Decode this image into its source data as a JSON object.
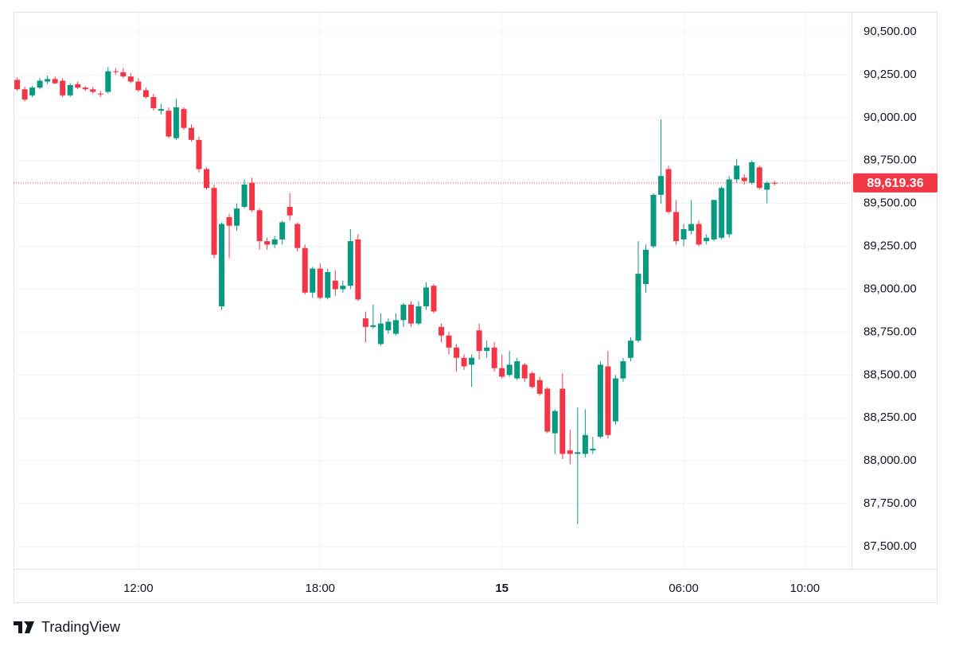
{
  "chart_data": {
    "type": "candlestick",
    "brand": "TradingView",
    "up_color": "#089981",
    "down_color": "#f23645",
    "grid": true,
    "xlim": [
      7.88,
      35.54
    ],
    "xticks": [
      {
        "value": 12,
        "label": "12:00"
      },
      {
        "value": 18,
        "label": "18:00"
      },
      {
        "value": 24,
        "label": "15"
      },
      {
        "value": 30,
        "label": "06:00"
      },
      {
        "value": 34,
        "label": "10:00"
      }
    ],
    "ylim": [
      87370,
      90616
    ],
    "yticks": [
      {
        "value": 87500,
        "label": "87,500.00"
      },
      {
        "value": 87750,
        "label": "87,750.00"
      },
      {
        "value": 88000,
        "label": "88,000.00"
      },
      {
        "value": 88250,
        "label": "88,250.00"
      },
      {
        "value": 88500,
        "label": "88,500.00"
      },
      {
        "value": 88750,
        "label": "88,750.00"
      },
      {
        "value": 89000,
        "label": "89,000.00"
      },
      {
        "value": 89250,
        "label": "89,250.00"
      },
      {
        "value": 89500,
        "label": "89,500.00"
      },
      {
        "value": 89750,
        "label": "89,750.00"
      },
      {
        "value": 90000,
        "label": "90,000.00"
      },
      {
        "value": 90250,
        "label": "90,250.00"
      },
      {
        "value": 90500,
        "label": "90,500.00"
      }
    ],
    "last_price": {
      "value": 89619.36,
      "label": "89,619.36"
    },
    "x": [
      8,
      8.25,
      8.5,
      8.75,
      9,
      9.25,
      9.5,
      9.75,
      10,
      10.25,
      10.5,
      10.75,
      11,
      11.25,
      11.5,
      11.75,
      12,
      12.25,
      12.5,
      12.75,
      13,
      13.25,
      13.5,
      13.75,
      14,
      14.25,
      14.5,
      14.75,
      15,
      15.25,
      15.5,
      15.75,
      16,
      16.25,
      16.5,
      16.75,
      17,
      17.25,
      17.5,
      17.75,
      18,
      18.25,
      18.5,
      18.75,
      19,
      19.25,
      19.5,
      19.75,
      20,
      20.25,
      20.5,
      20.75,
      21,
      21.25,
      21.5,
      21.75,
      22,
      22.25,
      22.5,
      22.75,
      23,
      23.25,
      23.5,
      23.75,
      24,
      24.25,
      24.5,
      24.75,
      25,
      25.25,
      25.5,
      25.75,
      26,
      26.25,
      26.5,
      26.75,
      27,
      27.25,
      27.5,
      27.75,
      28,
      28.25,
      28.5,
      28.75,
      29,
      29.25,
      29.5,
      29.75,
      30,
      30.25,
      30.5,
      30.75,
      31,
      31.25,
      31.5,
      31.75,
      32,
      32.25,
      32.5,
      32.75,
      33
    ],
    "open": [
      90220,
      90165,
      90130,
      90175,
      90210,
      90225,
      90215,
      90130,
      90195,
      90175,
      90165,
      90140,
      90150,
      90270,
      90265,
      90240,
      90210,
      90160,
      90120,
      90040,
      90040,
      89880,
      90050,
      89940,
      89870,
      89700,
      89590,
      88900,
      89420,
      89370,
      89480,
      89620,
      89460,
      89280,
      89260,
      89290,
      89480,
      89380,
      89240,
      88980,
      89120,
      88950,
      89050,
      89000,
      89020,
      89290,
      88830,
      88780,
      88680,
      88760,
      88740,
      88820,
      88910,
      88800,
      88900,
      89020,
      88780,
      88730,
      88660,
      88600,
      88560,
      88760,
      88640,
      88660,
      88540,
      88500,
      88480,
      88560,
      88510,
      88470,
      88420,
      88160,
      88420,
      88060,
      88040,
      88040,
      88060,
      88140,
      88550,
      88230,
      88480,
      88600,
      88700,
      89030,
      89250,
      89550,
      89700,
      89450,
      89290,
      89340,
      89380,
      89280,
      89290,
      89300,
      89320,
      89640,
      89650,
      89620,
      89710,
      89580,
      89620
    ],
    "high": [
      90235,
      90180,
      90185,
      90230,
      90245,
      90240,
      90230,
      90200,
      90210,
      90185,
      90180,
      90155,
      90295,
      90290,
      90290,
      90260,
      90230,
      90175,
      90140,
      90080,
      90060,
      90110,
      90060,
      89960,
      89890,
      89710,
      89610,
      89390,
      89440,
      89500,
      89640,
      89650,
      89470,
      89300,
      89310,
      89400,
      89560,
      89390,
      89260,
      89130,
      89150,
      89120,
      89110,
      89050,
      89350,
      89320,
      88870,
      88910,
      88860,
      88830,
      88860,
      88920,
      88930,
      88930,
      89040,
      89030,
      88800,
      88750,
      88680,
      88620,
      88620,
      88800,
      88700,
      88690,
      88620,
      88640,
      88600,
      88570,
      88520,
      88490,
      88430,
      88300,
      88510,
      88180,
      88310,
      88300,
      88140,
      88580,
      88640,
      88500,
      88600,
      88720,
      89280,
      89260,
      89560,
      89990,
      89720,
      89520,
      89380,
      89520,
      89400,
      89320,
      89520,
      89600,
      89660,
      89760,
      89670,
      89750,
      89720,
      89630,
      89630
    ],
    "low": [
      90155,
      90095,
      90120,
      90165,
      90195,
      90195,
      90120,
      90120,
      90165,
      90155,
      90140,
      90120,
      90140,
      90250,
      90230,
      90200,
      90150,
      90110,
      90040,
      90020,
      89880,
      89870,
      89930,
      89860,
      89680,
      89580,
      89180,
      88880,
      89180,
      89340,
      89470,
      89450,
      89230,
      89230,
      89240,
      89260,
      89400,
      89220,
      88970,
      88950,
      88940,
      88940,
      88960,
      88980,
      89000,
      88930,
      88690,
      88770,
      88670,
      88740,
      88730,
      88780,
      88780,
      88790,
      88880,
      88860,
      88690,
      88620,
      88520,
      88530,
      88430,
      88590,
      88600,
      88520,
      88480,
      88490,
      88470,
      88460,
      88420,
      88380,
      88160,
      88040,
      88010,
      87980,
      87630,
      88020,
      88040,
      88130,
      88130,
      88210,
      88460,
      88580,
      88690,
      88980,
      89240,
      89500,
      89440,
      89260,
      89250,
      89320,
      89250,
      89260,
      89280,
      89290,
      89300,
      89620,
      89610,
      89610,
      89580,
      89500,
      89605
    ],
    "close": [
      90165,
      90105,
      90175,
      90215,
      90225,
      90200,
      90130,
      90190,
      90175,
      90165,
      90150,
      90135,
      90270,
      90265,
      90240,
      90210,
      90160,
      90120,
      90055,
      90050,
      89890,
      90060,
      89940,
      89870,
      89700,
      89590,
      89200,
      89380,
      89370,
      89470,
      89610,
      89460,
      89280,
      89260,
      89290,
      89390,
      89430,
      89240,
      88980,
      89120,
      88950,
      89100,
      89000,
      89020,
      89280,
      88940,
      88780,
      88790,
      88800,
      88810,
      88820,
      88910,
      88800,
      88900,
      89010,
      88870,
      88730,
      88660,
      88600,
      88550,
      88600,
      88640,
      88660,
      88540,
      88490,
      88560,
      88580,
      88480,
      88430,
      88390,
      88170,
      88290,
      88040,
      88040,
      88050,
      88150,
      88070,
      88560,
      88150,
      88480,
      88580,
      88700,
      89090,
      89230,
      89550,
      89660,
      89450,
      89280,
      89350,
      89380,
      89260,
      89300,
      89520,
      89590,
      89640,
      89720,
      89630,
      89740,
      89590,
      89620,
      89619.36
    ]
  }
}
